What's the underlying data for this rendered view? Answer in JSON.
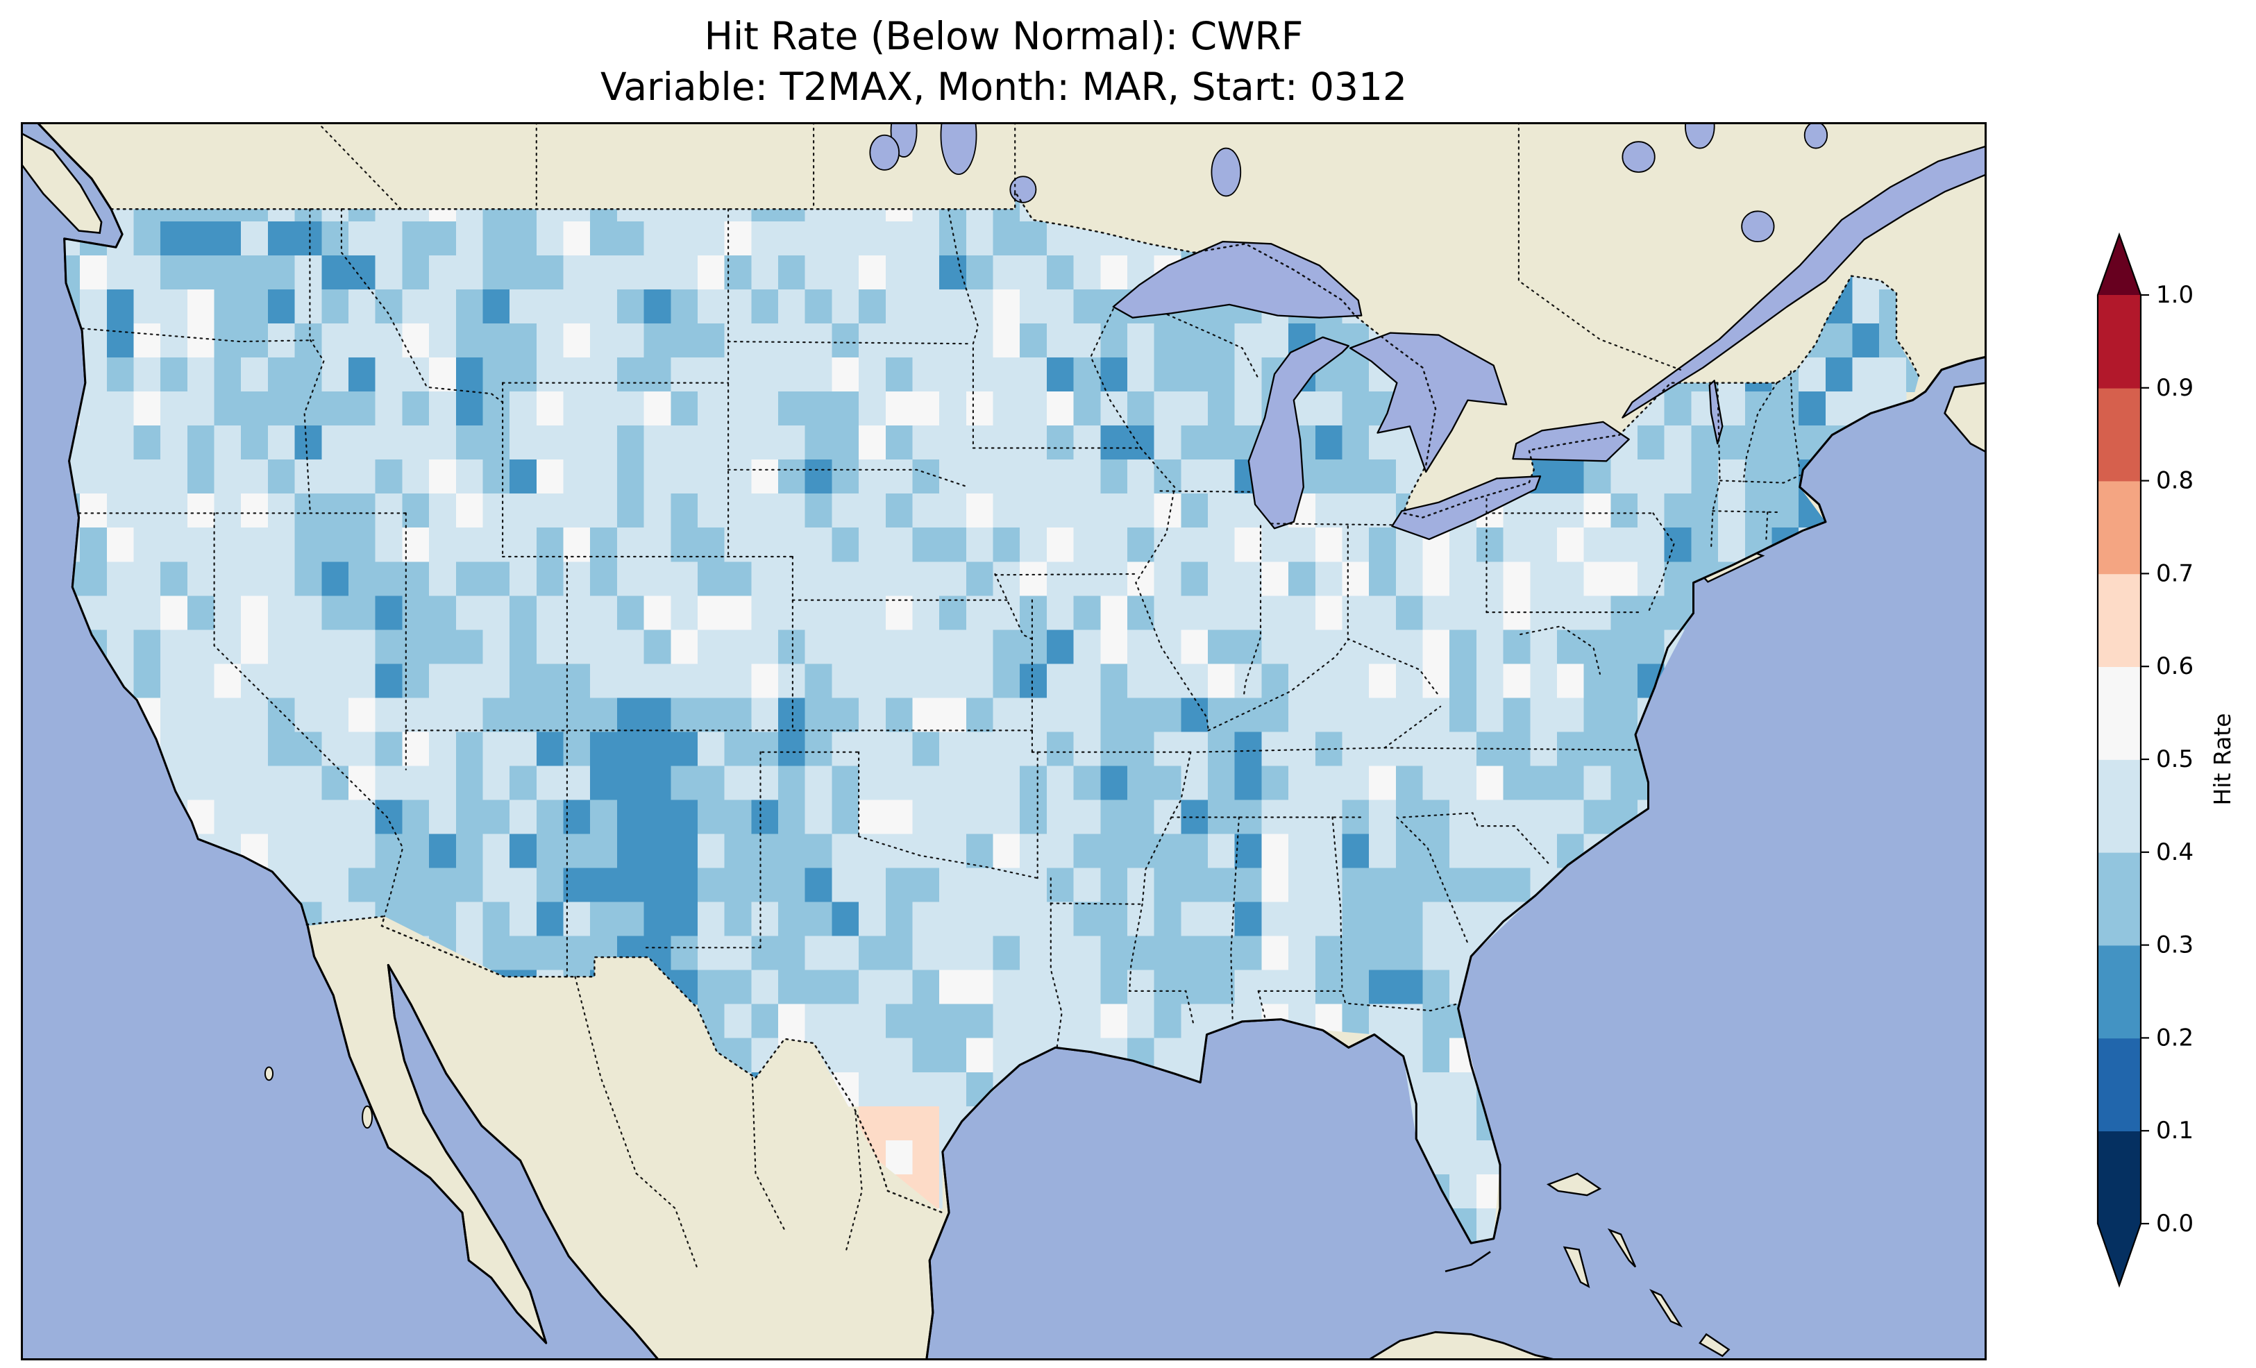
{
  "title": {
    "line1": "Hit Rate (Below Normal): CWRF",
    "line2": "Variable: T2MAX, Month: MAR, Start: 0312"
  },
  "colorbar": {
    "label": "Hit Rate",
    "ticks": [
      "1.0",
      "0.9",
      "0.8",
      "0.7",
      "0.6",
      "0.5",
      "0.4",
      "0.3",
      "0.2",
      "0.1",
      "0.0"
    ],
    "segment_colors_low_to_high": [
      "#053061",
      "#2166ac",
      "#4393c3",
      "#92c5de",
      "#d1e5f0",
      "#f7f7f7",
      "#fddbc7",
      "#f4a582",
      "#d6604d",
      "#b2182b"
    ],
    "extend_low_color": "#053061",
    "extend_high_color": "#67001f"
  },
  "map": {
    "ocean_color": "#9bb0dc",
    "land_color": "#ece9d4",
    "lake_color": "#a1afdf",
    "coastline_color": "#000000",
    "border_style": "dotted"
  },
  "chart_data": {
    "type": "heatmap",
    "title": "Hit Rate (Below Normal): CWRF",
    "subtitle": "Variable: T2MAX, Month: MAR, Start: 0312",
    "value_name": "Hit Rate",
    "value_range": [
      0.0,
      1.0
    ],
    "colorbar_bin_size": 0.1,
    "map_extent": {
      "lon": [
        -126,
        -65
      ],
      "lat": [
        22.5,
        51
      ]
    },
    "grid": {
      "lon_start": -125.0,
      "dlon": 2.5,
      "lat_start": 49.5,
      "dlat": -2.35,
      "values": [
        [
          0.45,
          0.35,
          0.35,
          0.35,
          0.45,
          0.35,
          0.45,
          0.45,
          0.45,
          0.45,
          0.45,
          0.35,
          0.45,
          0.45,
          0.35,
          null,
          null,
          null,
          null,
          null,
          null,
          null,
          0.35,
          null
        ],
        [
          0.35,
          0.45,
          0.35,
          0.35,
          0.45,
          0.35,
          0.45,
          0.35,
          0.45,
          0.45,
          0.45,
          0.45,
          0.35,
          0.35,
          0.35,
          0.35,
          0.35,
          null,
          null,
          null,
          0.35,
          0.35,
          0.35,
          0.35
        ],
        [
          0.45,
          0.45,
          0.35,
          0.35,
          0.45,
          0.35,
          0.45,
          0.45,
          0.45,
          0.35,
          0.45,
          0.45,
          0.45,
          0.35,
          0.35,
          0.35,
          0.35,
          null,
          0.35,
          0.35,
          0.35,
          0.35,
          0.45,
          null
        ],
        [
          0.45,
          0.45,
          0.45,
          0.35,
          0.45,
          0.45,
          0.45,
          0.45,
          0.45,
          0.45,
          0.45,
          0.45,
          0.45,
          0.45,
          0.45,
          0.45,
          0.45,
          0.45,
          0.45,
          0.45,
          0.35,
          0.35,
          null,
          null
        ],
        [
          0.45,
          0.45,
          0.45,
          0.45,
          0.35,
          0.45,
          0.35,
          0.45,
          0.45,
          0.45,
          0.45,
          0.45,
          0.35,
          0.45,
          0.45,
          0.45,
          0.45,
          0.45,
          0.45,
          0.35,
          0.45,
          null,
          null,
          null
        ],
        [
          null,
          0.45,
          0.45,
          0.45,
          0.45,
          0.35,
          0.35,
          0.25,
          0.35,
          0.35,
          0.45,
          0.45,
          0.45,
          0.35,
          0.35,
          0.45,
          0.45,
          0.45,
          0.35,
          0.35,
          null,
          null,
          null,
          null
        ],
        [
          null,
          0.45,
          0.45,
          0.45,
          0.35,
          0.35,
          0.25,
          0.25,
          0.35,
          0.35,
          0.45,
          0.45,
          0.45,
          0.35,
          0.35,
          0.45,
          0.35,
          0.45,
          0.45,
          0.35,
          null,
          null,
          null,
          null
        ],
        [
          null,
          null,
          null,
          0.45,
          0.35,
          0.35,
          0.35,
          0.25,
          0.35,
          0.35,
          0.45,
          0.45,
          0.45,
          0.35,
          0.35,
          0.45,
          0.35,
          0.45,
          0.45,
          null,
          null,
          null,
          null,
          null
        ],
        [
          null,
          null,
          null,
          null,
          null,
          null,
          null,
          null,
          0.35,
          0.45,
          0.45,
          0.45,
          0.45,
          0.45,
          0.45,
          0.45,
          0.45,
          0.45,
          null,
          null,
          null,
          null,
          null,
          null
        ],
        [
          null,
          null,
          null,
          null,
          null,
          null,
          null,
          null,
          null,
          null,
          0.62,
          0.45,
          null,
          null,
          null,
          null,
          0.45,
          0.45,
          null,
          null,
          null,
          null,
          null,
          null
        ],
        [
          null,
          null,
          null,
          null,
          null,
          null,
          null,
          null,
          null,
          null,
          0.55,
          null,
          null,
          null,
          null,
          null,
          null,
          0.45,
          null,
          null,
          null,
          null,
          null,
          null
        ]
      ]
    }
  }
}
